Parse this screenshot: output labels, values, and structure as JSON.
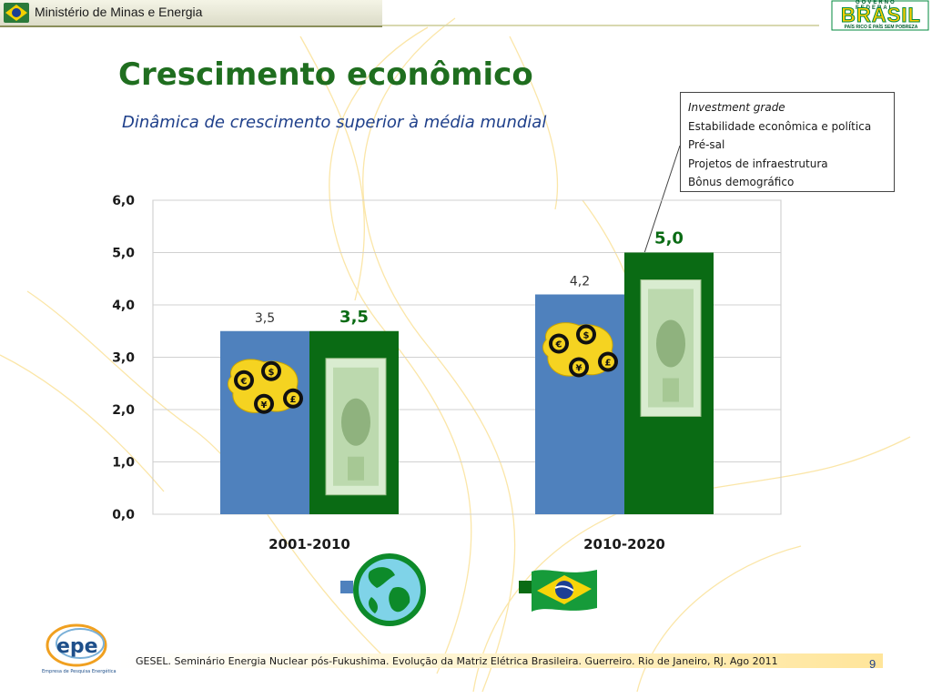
{
  "header": {
    "ministry_name": "Ministério de Minas e Energia",
    "gov_line": "GOVERNO FEDERAL",
    "brasil_word": "BRASIL",
    "brasil_slogan": "PAÍS RICO É PAÍS SEM POBREZA"
  },
  "slide": {
    "title": "Crescimento econômico",
    "subtitle": "Dinâmica de crescimento superior à média mundial"
  },
  "callout": {
    "items": [
      "Investment grade",
      "Estabilidade econômica e política",
      "Pré-sal",
      "Projetos de infraestrutura",
      "Bônus demográfico"
    ]
  },
  "chart_data": {
    "type": "bar",
    "categories": [
      "2001-2010",
      "2010-2020"
    ],
    "series": [
      {
        "values": [
          3.5,
          4.2
        ],
        "labels": [
          "3,5",
          "4,2"
        ],
        "color": "#4f81bd"
      },
      {
        "values": [
          3.5,
          5.0
        ],
        "labels": [
          "3,5",
          "5,0"
        ],
        "color": "#0a6b14"
      }
    ],
    "ylim": [
      0,
      6
    ],
    "y_ticks": [
      "0,0",
      "1,0",
      "2,0",
      "3,0",
      "4,0",
      "5,0",
      "6,0"
    ],
    "grid": true,
    "legend_icons": [
      "globe-icon",
      "brazil-flag-icon"
    ]
  },
  "footer": {
    "logo_text": "epe",
    "logo_caption": "Empresa de Pesquisa Energética",
    "citation": "GESEL. Seminário Energia Nuclear pós-Fukushima. Evolução da Matriz Elétrica Brasileira. Guerreiro. Rio de Janeiro, RJ. Ago 2011",
    "page_number": "9"
  },
  "colors": {
    "title": "#1f6e1f",
    "subtitle": "#1e3f8a",
    "series_world": "#4f81bd",
    "series_brazil": "#0a6b14"
  }
}
